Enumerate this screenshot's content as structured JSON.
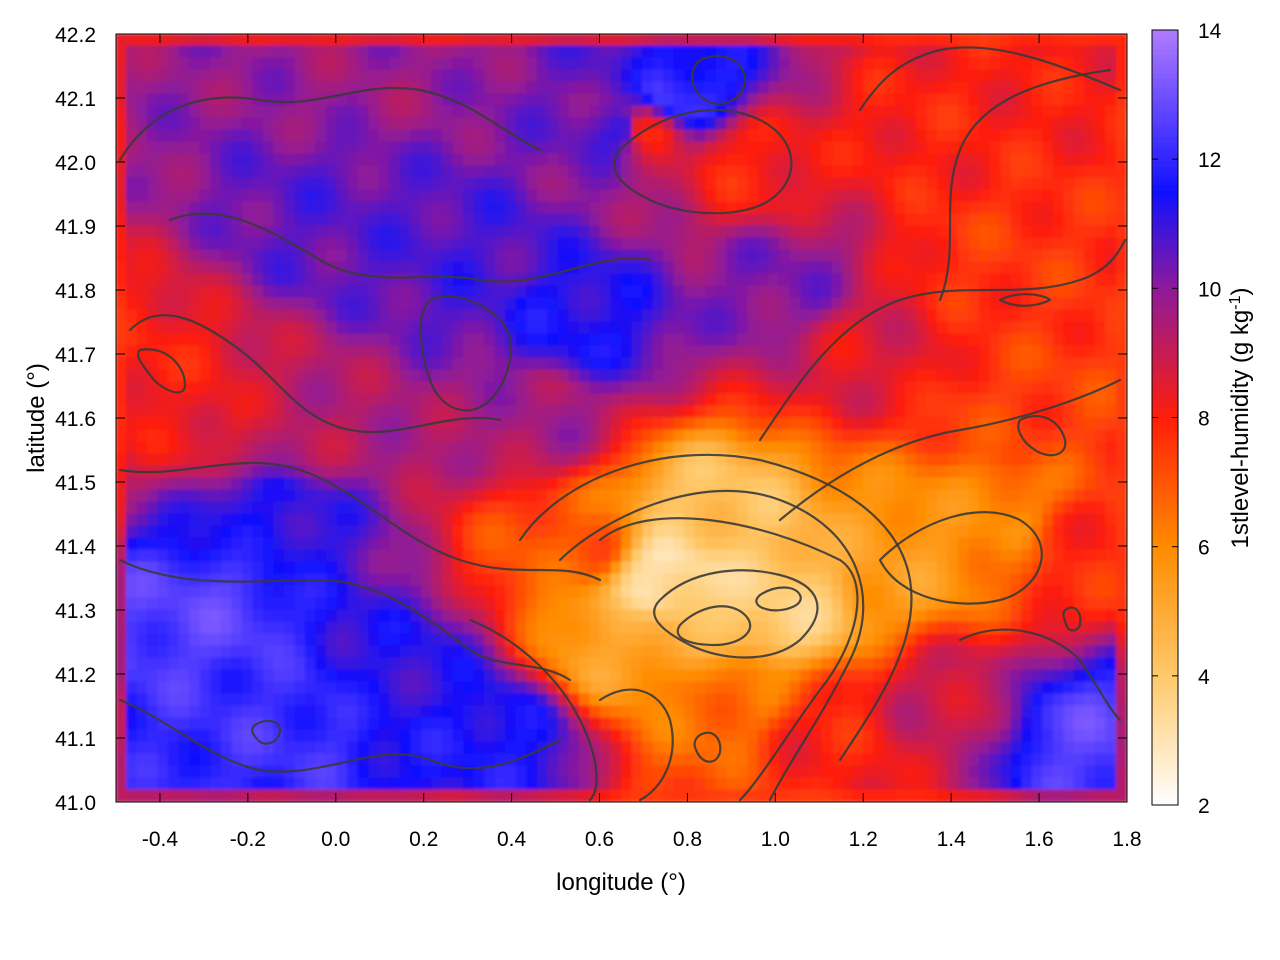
{
  "chart_data": {
    "type": "heatmap",
    "title": "",
    "xlabel": "longitude (°)",
    "ylabel": "latitude (°)",
    "xlim": [
      -0.5,
      1.8
    ],
    "ylim": [
      41.0,
      42.2
    ],
    "x_ticks": [
      {
        "value": -0.4,
        "label": "-0.4"
      },
      {
        "value": -0.2,
        "label": "-0.2"
      },
      {
        "value": 0.0,
        "label": "0.0"
      },
      {
        "value": 0.2,
        "label": "0.2"
      },
      {
        "value": 0.4,
        "label": "0.4"
      },
      {
        "value": 0.6,
        "label": "0.6"
      },
      {
        "value": 0.8,
        "label": "0.8"
      },
      {
        "value": 1.0,
        "label": "1.0"
      },
      {
        "value": 1.2,
        "label": "1.2"
      },
      {
        "value": 1.4,
        "label": "1.4"
      },
      {
        "value": 1.6,
        "label": "1.6"
      },
      {
        "value": 1.8,
        "label": "1.8"
      }
    ],
    "y_ticks": [
      {
        "value": 41.0,
        "label": "41.0"
      },
      {
        "value": 41.1,
        "label": "41.1"
      },
      {
        "value": 41.2,
        "label": "41.2"
      },
      {
        "value": 41.3,
        "label": "41.3"
      },
      {
        "value": 41.4,
        "label": "41.4"
      },
      {
        "value": 41.5,
        "label": "41.5"
      },
      {
        "value": 41.6,
        "label": "41.6"
      },
      {
        "value": 41.7,
        "label": "41.7"
      },
      {
        "value": 41.8,
        "label": "41.8"
      },
      {
        "value": 41.9,
        "label": "41.9"
      },
      {
        "value": 42.0,
        "label": "42.0"
      },
      {
        "value": 42.1,
        "label": "42.1"
      },
      {
        "value": 42.2,
        "label": "42.2"
      }
    ],
    "colorbar": {
      "label": "1stlevel-humidity (g kg",
      "label_sup": "-1",
      "label_end": ")",
      "range": [
        2,
        14
      ],
      "ticks": [
        {
          "value": 2,
          "label": "2"
        },
        {
          "value": 4,
          "label": "4"
        },
        {
          "value": 6,
          "label": "6"
        },
        {
          "value": 8,
          "label": "8"
        },
        {
          "value": 10,
          "label": "10"
        },
        {
          "value": 12,
          "label": "12"
        },
        {
          "value": 14,
          "label": "14"
        }
      ],
      "palette": [
        {
          "value": 2,
          "color": "#ffffff"
        },
        {
          "value": 4,
          "color": "#ffc96b"
        },
        {
          "value": 6,
          "color": "#ff8c00"
        },
        {
          "value": 8,
          "color": "#ff1e0a"
        },
        {
          "value": 10,
          "color": "#8e1a9a"
        },
        {
          "value": 11.5,
          "color": "#1010ff"
        },
        {
          "value": 14,
          "color": "#b07bff"
        }
      ]
    },
    "field_features": [
      {
        "x": -0.45,
        "y": 41.68,
        "value": 8.0
      },
      {
        "x": -0.3,
        "y": 41.6,
        "value": 8.3
      },
      {
        "x": -0.1,
        "y": 41.57,
        "value": 9.3
      },
      {
        "x": 0.45,
        "y": 41.6,
        "value": 9.6
      },
      {
        "x": -0.3,
        "y": 41.3,
        "value": 12.6
      },
      {
        "x": -0.1,
        "y": 41.12,
        "value": 12.2
      },
      {
        "x": 0.15,
        "y": 41.2,
        "value": 11.2
      },
      {
        "x": 0.0,
        "y": 41.9,
        "value": 10.6
      },
      {
        "x": 0.3,
        "y": 41.85,
        "value": 10.8
      },
      {
        "x": 0.55,
        "y": 41.75,
        "value": 11.4
      },
      {
        "x": 0.65,
        "y": 42.05,
        "value": 11.0
      },
      {
        "x": 0.78,
        "y": 42.1,
        "value": 12.2
      },
      {
        "x": 0.7,
        "y": 42.05,
        "value": 8.2
      },
      {
        "x": 0.93,
        "y": 42.0,
        "value": 8.0
      },
      {
        "x": 1.35,
        "y": 42.05,
        "value": 8.0
      },
      {
        "x": 1.5,
        "y": 41.85,
        "value": 7.6
      },
      {
        "x": 1.55,
        "y": 41.6,
        "value": 7.4
      },
      {
        "x": 1.7,
        "y": 41.4,
        "value": 7.8
      },
      {
        "x": 1.2,
        "y": 41.7,
        "value": 8.6
      },
      {
        "x": 0.75,
        "y": 41.35,
        "value": 3.2
      },
      {
        "x": 0.85,
        "y": 41.45,
        "value": 4.2
      },
      {
        "x": 0.65,
        "y": 41.25,
        "value": 5.2
      },
      {
        "x": 1.0,
        "y": 41.3,
        "value": 3.8
      },
      {
        "x": 1.3,
        "y": 41.38,
        "value": 5.5
      },
      {
        "x": 1.5,
        "y": 41.45,
        "value": 6.0
      },
      {
        "x": 0.9,
        "y": 41.15,
        "value": 6.5
      },
      {
        "x": 1.1,
        "y": 41.1,
        "value": 8.0
      },
      {
        "x": 0.55,
        "y": 41.4,
        "value": 7.0
      },
      {
        "x": 1.4,
        "y": 41.15,
        "value": 9.0
      },
      {
        "x": 1.7,
        "y": 41.1,
        "value": 12.6
      },
      {
        "x": 0.35,
        "y": 41.1,
        "value": 11.6
      },
      {
        "x": -0.15,
        "y": 41.45,
        "value": 11.3
      },
      {
        "x": 0.1,
        "y": 42.15,
        "value": 9.8
      },
      {
        "x": 1.0,
        "y": 41.8,
        "value": 10.2
      }
    ],
    "border_value": 7.5,
    "grid": false,
    "legend": "colorbar-right"
  }
}
